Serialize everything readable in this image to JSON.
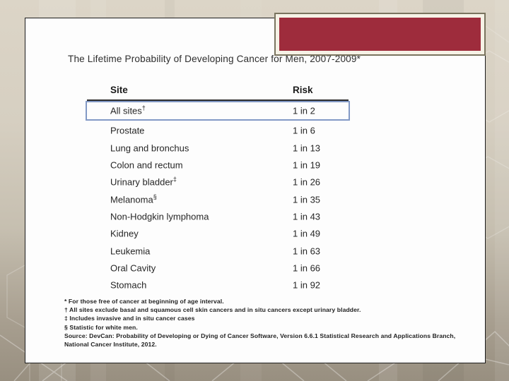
{
  "slide": {
    "title": "The Lifetime Probability of Developing Cancer for Men, 2007-2009*"
  },
  "table": {
    "site_header": "Site",
    "risk_header": "Risk",
    "rows": [
      {
        "site": "All sites",
        "sup": "†",
        "risk": "1 in 2",
        "highlighted": true
      },
      {
        "site": "Prostate",
        "sup": "",
        "risk": "1 in 6",
        "highlighted": false
      },
      {
        "site": "Lung and bronchus",
        "sup": "",
        "risk": "1 in 13",
        "highlighted": false
      },
      {
        "site": "Colon and rectum",
        "sup": "",
        "risk": "1 in 19",
        "highlighted": false
      },
      {
        "site": "Urinary bladder",
        "sup": "‡",
        "risk": "1 in 26",
        "highlighted": false
      },
      {
        "site": "Melanoma",
        "sup": "§",
        "risk": "1 in 35",
        "highlighted": false
      },
      {
        "site": "Non-Hodgkin lymphoma",
        "sup": "",
        "risk": "1 in 43",
        "highlighted": false
      },
      {
        "site": "Kidney",
        "sup": "",
        "risk": "1 in 49",
        "highlighted": false
      },
      {
        "site": "Leukemia",
        "sup": "",
        "risk": "1 in 63",
        "highlighted": false
      },
      {
        "site": "Oral Cavity",
        "sup": "",
        "risk": "1 in 66",
        "highlighted": false
      },
      {
        "site": "Stomach",
        "sup": "",
        "risk": "1 in 92",
        "highlighted": false
      }
    ]
  },
  "footnotes": [
    "* For those free of cancer at beginning of age interval.",
    "† All sites exclude basal and squamous cell skin cancers and in situ cancers except urinary bladder.",
    "‡ Includes invasive and in situ cancer cases",
    "§ Statistic for white men.",
    "Source: DevCan: Probability of Developing or Dying of Cancer Software, Version 6.6.1 Statistical Research and Applications Branch, National Cancer Institute, 2012."
  ],
  "colors": {
    "accent_red": "#9e2c3c",
    "frame_cream": "#f6f2e6",
    "frame_olive": "#7a745f",
    "highlight_blue": "#8299c5",
    "background_top": "#dcd5c7",
    "background_bottom": "#988f80"
  }
}
